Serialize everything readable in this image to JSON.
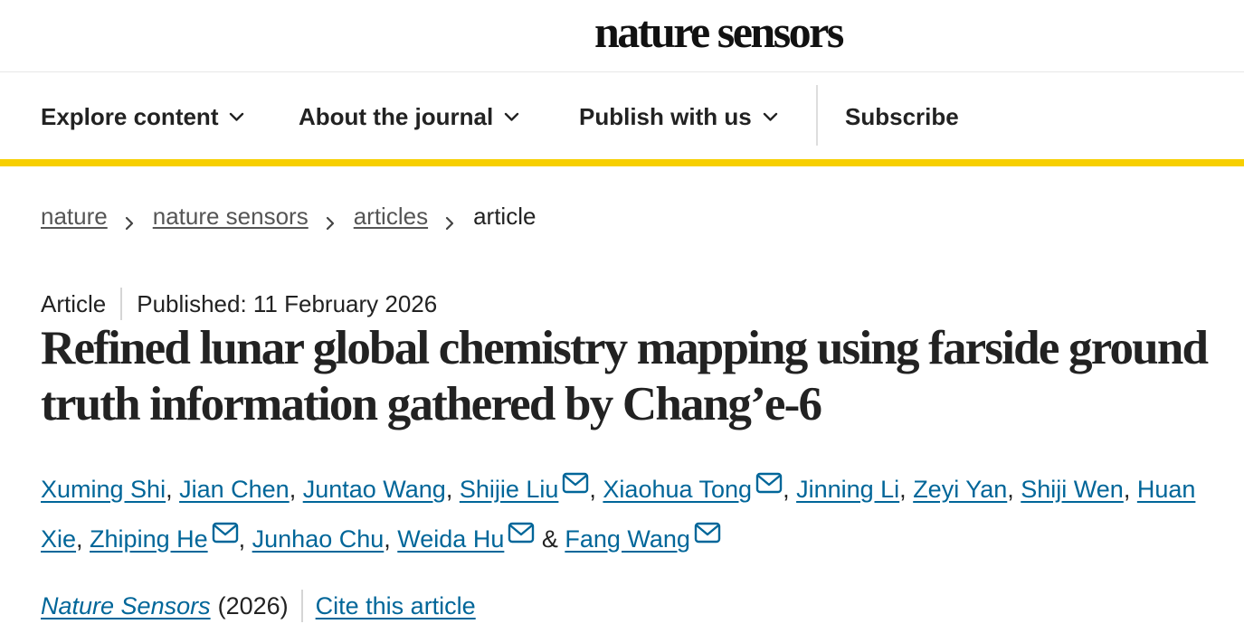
{
  "brand": {
    "logo": "nature sensors"
  },
  "nav": {
    "items": [
      {
        "label": "Explore content",
        "icon": "chevron-down-icon"
      },
      {
        "label": "About the journal",
        "icon": "chevron-down-icon"
      },
      {
        "label": "Publish with us",
        "icon": "chevron-down-icon"
      }
    ],
    "subscribe_label": "Subscribe",
    "accent_color": "#f7cf00"
  },
  "breadcrumb": {
    "links": [
      "nature",
      "nature sensors",
      "articles"
    ],
    "current": "article",
    "separator_icon": "chevron-right-icon"
  },
  "article": {
    "type": "Article",
    "published": "Published: 11 February 2026",
    "title": "Refined lunar global chemistry mapping using farside ground truth information gathered by Chang’e-6",
    "authors": [
      {
        "name": "Xuming Shi",
        "email_icon": false
      },
      {
        "name": "Jian Chen",
        "email_icon": false
      },
      {
        "name": "Juntao Wang",
        "email_icon": false
      },
      {
        "name": "Shijie Liu",
        "email_icon": true
      },
      {
        "name": "Xiaohua Tong",
        "email_icon": true
      },
      {
        "name": "Jinning Li",
        "email_icon": false
      },
      {
        "name": "Zeyi Yan",
        "email_icon": false
      },
      {
        "name": "Shiji Wen",
        "email_icon": false
      },
      {
        "name": "Huan Xie",
        "email_icon": false
      },
      {
        "name": "Zhiping He",
        "email_icon": true
      },
      {
        "name": "Junhao Chu",
        "email_icon": false
      },
      {
        "name": "Weida Hu",
        "email_icon": true
      },
      {
        "name": "Fang Wang",
        "email_icon": true
      }
    ],
    "author_separator": ", ",
    "last_author_joiner": " & ",
    "link_color": "#006699"
  },
  "citation": {
    "journal": "Nature Sensors",
    "year": "(2026)",
    "cite_label": "Cite this article"
  }
}
